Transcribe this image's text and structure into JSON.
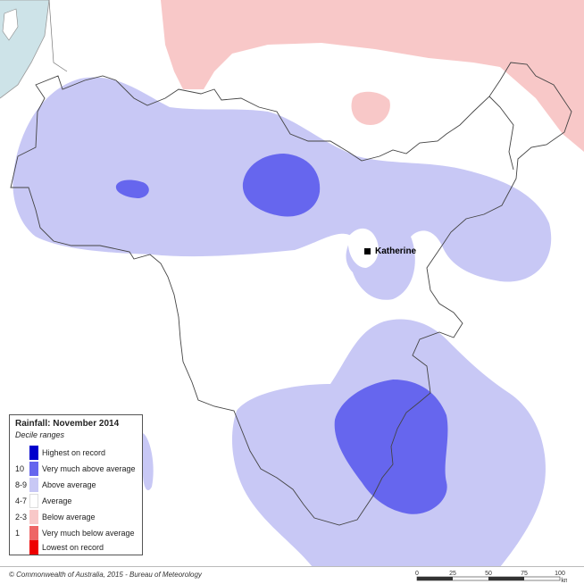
{
  "legend": {
    "title": "Rainfall: November 2014",
    "subtitle": "Decile ranges",
    "items": [
      {
        "decile": "",
        "label": "Highest on record",
        "color": "#0000cc"
      },
      {
        "decile": "10",
        "label": "Very much above average",
        "color": "#6666ee"
      },
      {
        "decile": "8-9",
        "label": "Above average",
        "color": "#c8c8f5"
      },
      {
        "decile": "4-7",
        "label": "Average",
        "color": "#ffffff"
      },
      {
        "decile": "2-3",
        "label": "Below average",
        "color": "#f8c8c8"
      },
      {
        "decile": "1",
        "label": "Very much below average",
        "color": "#ee6666"
      },
      {
        "decile": "",
        "label": "Lowest on record",
        "color": "#ee0000"
      }
    ]
  },
  "town": {
    "name": "Katherine"
  },
  "footer": {
    "copyright": "© Commonwealth of Australia, 2015 - Bureau of Meteorology"
  },
  "scalebar": {
    "ticks": [
      "0",
      "25",
      "50",
      "75",
      "100"
    ],
    "unit": "km"
  },
  "colors": {
    "sea": "#cde3e8",
    "boundary": "#444444"
  }
}
